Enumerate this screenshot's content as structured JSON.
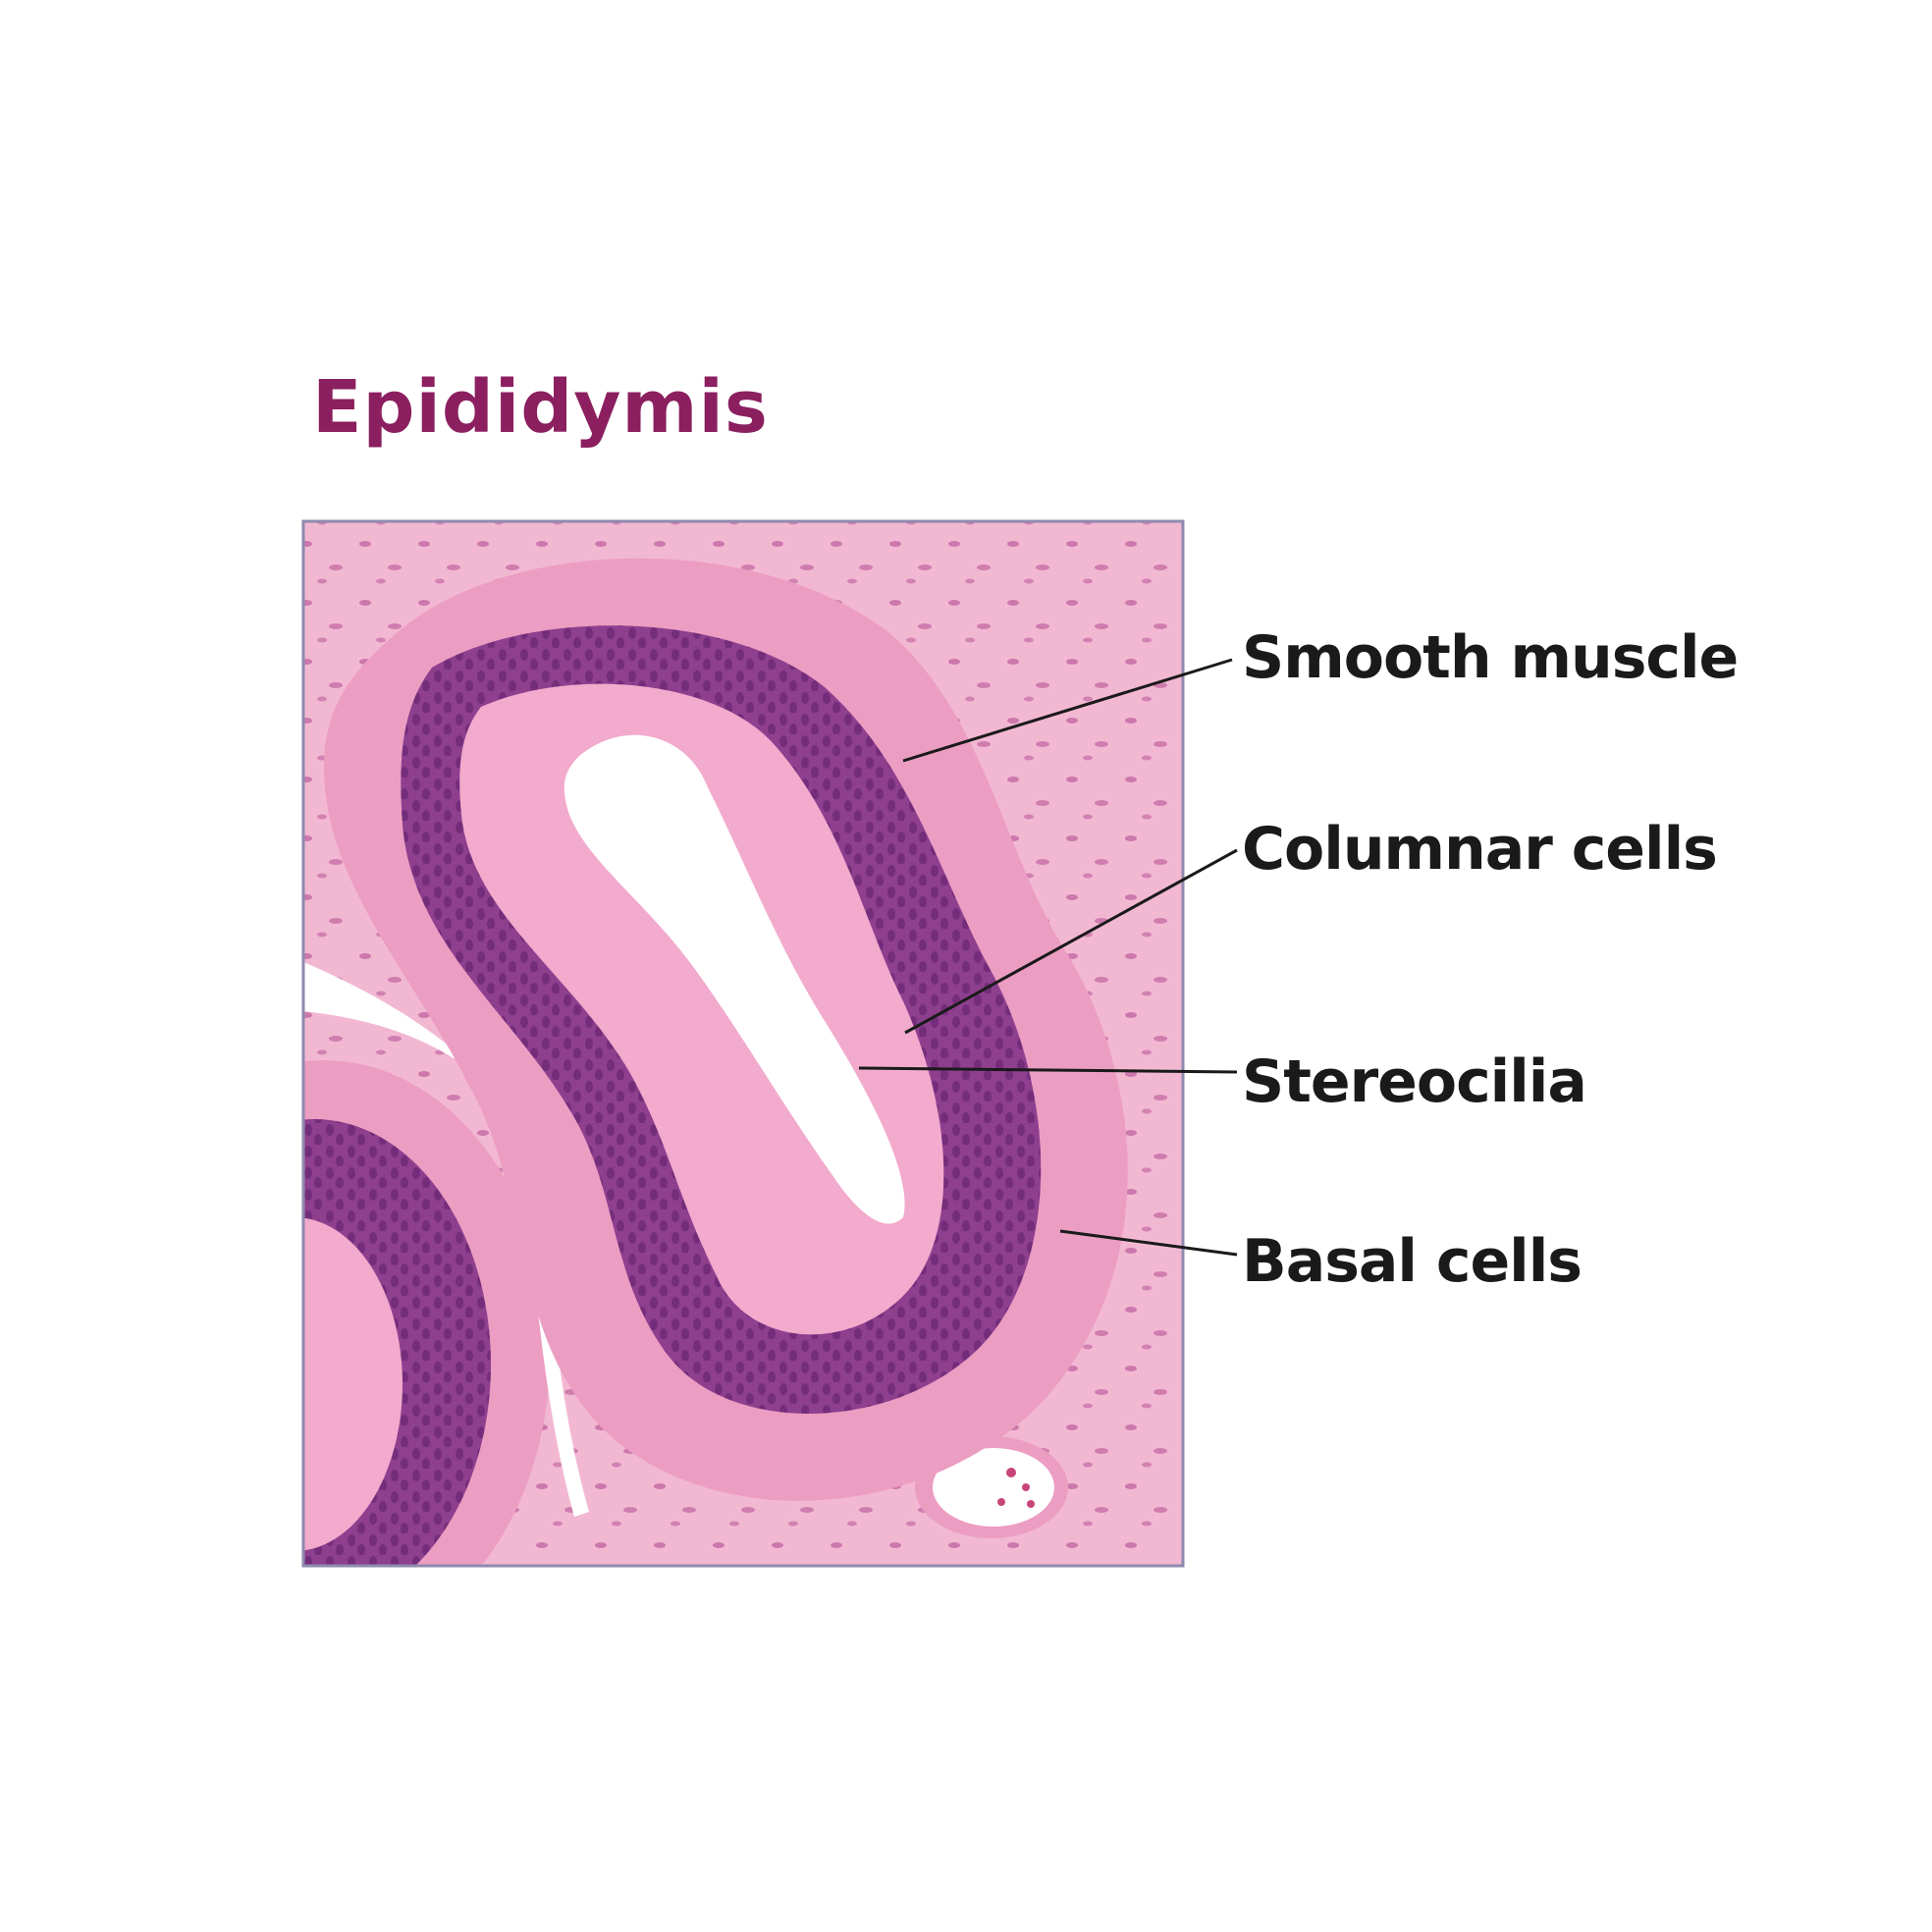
{
  "title": "Epididymis",
  "colors": {
    "title": "#8B1F5F",
    "frame": "#8E8AAE",
    "stroma": "#F2B8D2",
    "muscle": "#EC9DC2",
    "epithelium": "#8E3F8E",
    "apical_cytoplasm": "#F2AACD",
    "lumen": "#FFFFFF",
    "nuclei": "#6E2A78",
    "leader_line": "#1a1a1a"
  },
  "labels": {
    "smooth_muscle": "Smooth muscle",
    "columnar_cells": "Columnar cells",
    "stereocilia": "Stereocilia",
    "basal_cells": "Basal cells"
  }
}
